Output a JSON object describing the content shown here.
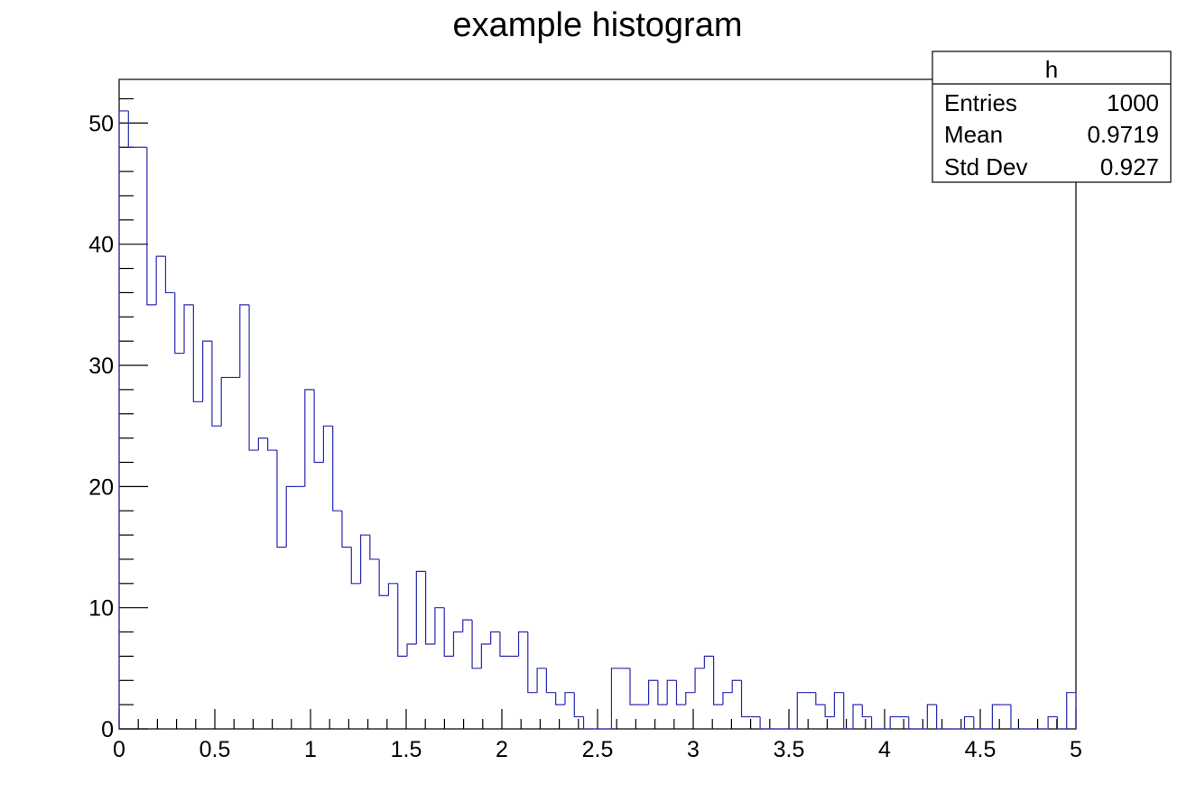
{
  "chart_data": {
    "type": "histogram",
    "title": "example histogram",
    "xlabel": "",
    "ylabel": "",
    "xlim": [
      0,
      5
    ],
    "ylim": [
      0,
      53.6
    ],
    "bin_width": 0.05,
    "x_ticks": [
      "0",
      "0.5",
      "1",
      "1.5",
      "2",
      "2.5",
      "3",
      "3.5",
      "4",
      "4.5",
      "5"
    ],
    "y_ticks": [
      "0",
      "10",
      "20",
      "30",
      "40",
      "50"
    ],
    "grid": false,
    "line_color": "#2b2bb0",
    "series": [
      {
        "values": [
          51,
          48,
          48,
          35,
          39,
          36,
          31,
          35,
          27,
          32,
          25,
          29,
          29,
          35,
          23,
          24,
          23,
          15,
          20,
          20,
          28,
          22,
          25,
          18,
          15,
          12,
          16,
          14,
          11,
          12,
          6,
          7,
          13,
          7,
          10,
          6,
          8,
          9,
          5,
          7,
          8,
          6,
          6,
          8,
          3,
          5,
          3,
          2,
          3,
          1,
          0,
          0,
          0,
          5,
          5,
          2,
          2,
          4,
          2,
          4,
          2,
          3,
          5,
          6,
          2,
          3,
          4,
          1,
          1,
          0,
          0,
          0,
          0,
          3,
          3,
          2,
          1,
          3,
          0,
          2,
          1,
          0,
          0,
          1,
          1,
          0,
          0,
          2,
          0,
          0,
          0,
          1,
          0,
          0,
          2,
          2,
          0,
          0,
          0,
          0,
          1,
          0,
          3
        ]
      }
    ],
    "stats_box": {
      "name": "h",
      "rows": [
        {
          "label": "Entries",
          "value": "1000"
        },
        {
          "label": "Mean",
          "value": "0.9719"
        },
        {
          "label": "Std Dev",
          "value": "0.927"
        }
      ]
    }
  }
}
